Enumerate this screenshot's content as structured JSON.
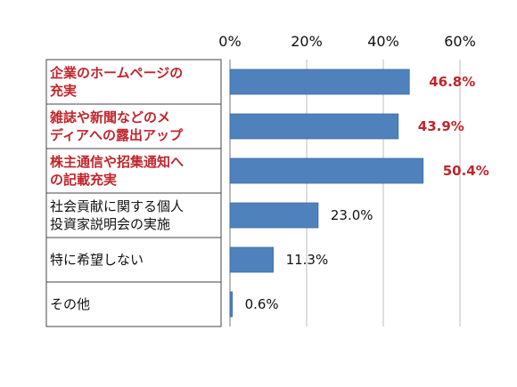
{
  "chart_data": {
    "type": "bar",
    "orientation": "horizontal",
    "categories": [
      [
        "企業のホームページの",
        "充実"
      ],
      [
        "雑誌や新聞などのメ",
        "ディアへの露出アップ"
      ],
      [
        "株主通信や招集通知へ",
        "の記載充実"
      ],
      [
        "社会貢献に関する個人",
        "投資家説明会の実施"
      ],
      [
        "特に希望しない"
      ],
      [
        "その他"
      ]
    ],
    "values": [
      46.8,
      43.9,
      50.4,
      23.0,
      11.3,
      0.6
    ],
    "value_labels": [
      "46.8%",
      "43.9%",
      "50.4%",
      "23.0%",
      "11.3%",
      "0.6%"
    ],
    "highlighted": [
      true,
      true,
      true,
      false,
      false,
      false
    ],
    "xlim": [
      0,
      60
    ],
    "ticks": [
      0,
      20,
      40,
      60
    ],
    "tick_labels": [
      "0%",
      "20%",
      "40%",
      "60%"
    ],
    "grid": true,
    "colors": {
      "bar": "#4f81bd",
      "highlight_text": "#c0262d",
      "text": "#111111"
    }
  }
}
